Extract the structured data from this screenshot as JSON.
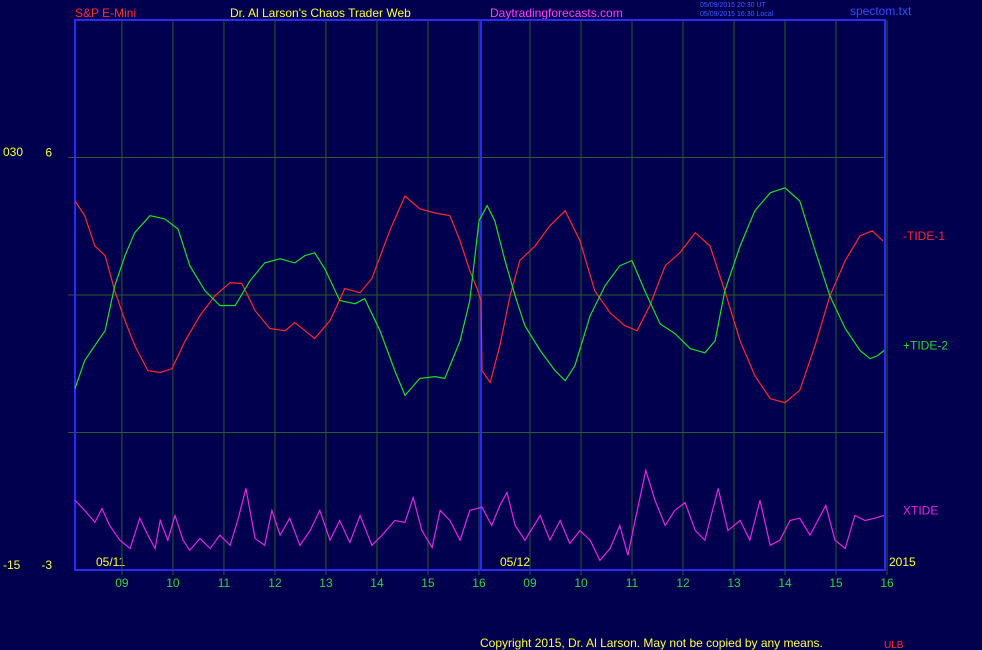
{
  "chart_data": {
    "type": "line",
    "header": {
      "instrument": "S&P E-Mini",
      "title": "Dr. Al Larson's Chaos Trader Web",
      "site": "Daytradingforecasts.com",
      "time_ut": "05/09/2015 20:30 UT",
      "time_local": "05/09/2015 16:30 Local",
      "file": "spectom.txt"
    },
    "footer": {
      "copyright": "Copyright 2015, Dr. Al Larson. May not be copied by any means.",
      "mark": "ULB"
    },
    "annotations": {
      "day1": "05/11",
      "day2": "05/12",
      "year": "2015"
    },
    "xlim": [
      0.08,
      15.96
    ],
    "xticks": [
      {
        "value": 1,
        "label": "09"
      },
      {
        "value": 2,
        "label": "10"
      },
      {
        "value": 3,
        "label": "11"
      },
      {
        "value": 4,
        "label": "12"
      },
      {
        "value": 5,
        "label": "13"
      },
      {
        "value": 6,
        "label": "14"
      },
      {
        "value": 7,
        "label": "15"
      },
      {
        "value": 8,
        "label": "16"
      },
      {
        "value": 9,
        "label": "09"
      },
      {
        "value": 10,
        "label": "10"
      },
      {
        "value": 11,
        "label": "11"
      },
      {
        "value": 12,
        "label": "12"
      },
      {
        "value": 13,
        "label": "13"
      },
      {
        "value": 14,
        "label": "14"
      },
      {
        "value": 15,
        "label": "15"
      },
      {
        "value": 16,
        "label": "16"
      }
    ],
    "day_divider": 8.04,
    "ylim": [
      -3,
      9
    ],
    "yticks": [
      -3,
      6
    ],
    "ygrid": [
      0,
      3,
      6
    ],
    "y2lim": [
      -15,
      44.9
    ],
    "y2ticks": [
      -15,
      {
        "value": 30,
        "label": "030"
      }
    ],
    "grid": true,
    "series": [
      {
        "name": "-TIDE-1",
        "color": "#ff2a2a",
        "x": [
          0.08,
          0.27,
          0.47,
          0.67,
          0.86,
          1.06,
          1.25,
          1.51,
          1.75,
          1.98,
          2.24,
          2.53,
          2.82,
          3.12,
          3.35,
          3.61,
          3.9,
          4.2,
          4.39,
          4.59,
          4.78,
          5.08,
          5.37,
          5.67,
          5.9,
          6.25,
          6.55,
          6.84,
          7.14,
          7.43,
          7.63,
          7.82,
          7.98,
          8.04,
          8.06,
          8.22,
          8.41,
          8.61,
          8.8,
          9.1,
          9.39,
          9.69,
          9.98,
          10.27,
          10.57,
          10.86,
          11.1,
          11.35,
          11.65,
          11.94,
          12.24,
          12.53,
          12.82,
          13.12,
          13.41,
          13.71,
          14.0,
          14.29,
          14.59,
          14.88,
          15.18,
          15.47,
          15.71,
          15.92
        ],
        "values": [
          5.05,
          4.73,
          4.07,
          3.86,
          3.09,
          2.44,
          1.9,
          1.35,
          1.31,
          1.39,
          2.0,
          2.55,
          2.98,
          3.27,
          3.25,
          2.66,
          2.27,
          2.22,
          2.4,
          2.22,
          2.05,
          2.44,
          3.14,
          3.05,
          3.36,
          4.4,
          5.16,
          4.88,
          4.79,
          4.73,
          4.18,
          3.53,
          3.09,
          2.88,
          1.35,
          1.09,
          1.9,
          2.98,
          3.75,
          4.07,
          4.51,
          4.84,
          4.18,
          3.09,
          2.61,
          2.33,
          2.22,
          2.77,
          3.64,
          3.92,
          4.36,
          4.07,
          3.09,
          2.0,
          1.24,
          0.74,
          0.65,
          0.92,
          1.9,
          2.98,
          3.75,
          4.29,
          4.4,
          4.18
        ]
      },
      {
        "name": "+TIDE-2",
        "color": "#22dd22",
        "x": [
          0.08,
          0.27,
          0.47,
          0.67,
          0.86,
          1.06,
          1.25,
          1.55,
          1.84,
          2.1,
          2.33,
          2.63,
          2.92,
          3.22,
          3.51,
          3.8,
          4.1,
          4.39,
          4.59,
          4.78,
          4.98,
          5.27,
          5.57,
          5.76,
          6.06,
          6.35,
          6.55,
          6.84,
          7.14,
          7.33,
          7.63,
          7.82,
          8.0,
          8.16,
          8.31,
          8.51,
          8.71,
          8.9,
          9.2,
          9.49,
          9.69,
          9.88,
          10.18,
          10.47,
          10.76,
          11.0,
          11.25,
          11.55,
          11.84,
          12.14,
          12.43,
          12.63,
          12.82,
          13.12,
          13.41,
          13.71,
          14.0,
          14.29,
          14.59,
          14.88,
          15.18,
          15.47,
          15.67,
          15.82,
          15.94
        ],
        "values": [
          0.96,
          1.57,
          1.9,
          2.22,
          3.2,
          3.86,
          4.36,
          4.73,
          4.66,
          4.44,
          3.64,
          3.09,
          2.77,
          2.77,
          3.31,
          3.7,
          3.79,
          3.7,
          3.86,
          3.92,
          3.57,
          2.88,
          2.81,
          2.92,
          2.22,
          1.35,
          0.81,
          1.18,
          1.22,
          1.18,
          2.0,
          2.88,
          4.62,
          4.95,
          4.62,
          3.75,
          2.98,
          2.33,
          1.79,
          1.35,
          1.13,
          1.46,
          2.55,
          3.2,
          3.64,
          3.75,
          3.09,
          2.37,
          2.16,
          1.83,
          1.74,
          2.0,
          3.09,
          4.07,
          4.84,
          5.23,
          5.34,
          5.05,
          3.97,
          2.98,
          2.27,
          1.79,
          1.61,
          1.68,
          1.79
        ]
      },
      {
        "name": "XTIDE",
        "color": "#e02ae0",
        "x": [
          0.08,
          0.27,
          0.47,
          0.61,
          0.76,
          0.96,
          1.16,
          1.35,
          1.51,
          1.65,
          1.75,
          1.9,
          2.04,
          2.2,
          2.33,
          2.53,
          2.73,
          2.92,
          3.12,
          3.27,
          3.43,
          3.61,
          3.8,
          3.94,
          4.1,
          4.29,
          4.49,
          4.69,
          4.88,
          5.08,
          5.27,
          5.47,
          5.67,
          5.9,
          6.1,
          6.35,
          6.55,
          6.71,
          6.88,
          7.08,
          7.24,
          7.43,
          7.63,
          7.82,
          8.06,
          8.25,
          8.41,
          8.55,
          8.71,
          8.9,
          9.2,
          9.39,
          9.59,
          9.78,
          9.98,
          10.18,
          10.37,
          10.57,
          10.76,
          10.92,
          11.06,
          11.27,
          11.45,
          11.65,
          11.84,
          12.04,
          12.24,
          12.43,
          12.69,
          12.88,
          13.12,
          13.31,
          13.51,
          13.71,
          13.9,
          14.1,
          14.29,
          14.49,
          14.8,
          14.98,
          15.18,
          15.37,
          15.57,
          15.76,
          15.94
        ],
        "values": [
          -1.48,
          -1.7,
          -1.96,
          -1.66,
          -2.03,
          -2.35,
          -2.53,
          -1.87,
          -2.24,
          -2.53,
          -1.92,
          -2.35,
          -1.81,
          -2.35,
          -2.57,
          -2.31,
          -2.53,
          -2.24,
          -2.46,
          -1.92,
          -1.22,
          -2.31,
          -2.46,
          -1.7,
          -2.24,
          -1.87,
          -2.46,
          -2.14,
          -1.7,
          -2.35,
          -1.92,
          -2.4,
          -1.81,
          -2.46,
          -2.24,
          -1.92,
          -1.96,
          -1.42,
          -2.14,
          -2.51,
          -1.7,
          -1.92,
          -2.35,
          -1.7,
          -1.63,
          -2.03,
          -1.59,
          -1.31,
          -2.03,
          -2.35,
          -1.81,
          -2.35,
          -1.92,
          -2.42,
          -2.14,
          -2.35,
          -2.79,
          -2.53,
          -2.03,
          -2.68,
          -1.92,
          -0.83,
          -1.48,
          -2.03,
          -1.7,
          -1.53,
          -2.14,
          -2.35,
          -1.22,
          -2.14,
          -1.92,
          -2.35,
          -1.48,
          -2.46,
          -2.35,
          -1.92,
          -1.87,
          -2.24,
          -1.59,
          -2.35,
          -2.53,
          -1.81,
          -1.92,
          -1.87,
          -1.81
        ]
      }
    ]
  }
}
